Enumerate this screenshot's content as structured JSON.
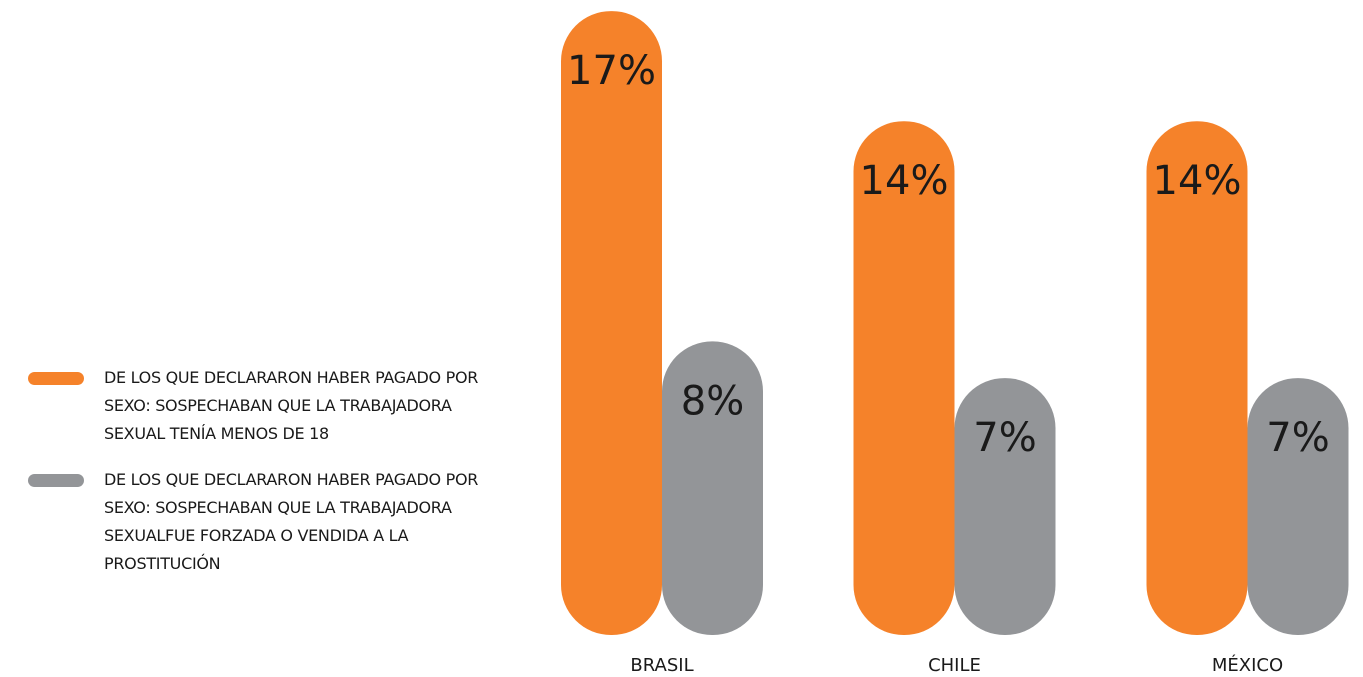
{
  "chart_data": {
    "type": "bar",
    "categories": [
      "BRASIL",
      "CHILE",
      "MÉXICO"
    ],
    "series": [
      {
        "name": "DE LOS QUE DECLARARON HABER PAGADO POR SEXO: SOSPECHABAN QUE LA TRABAJADORA SEXUAL TENÍA MENOS DE 18",
        "color": "#f5822a",
        "values": [
          17,
          14,
          14
        ],
        "value_labels": [
          "17%",
          "14%",
          "14%"
        ]
      },
      {
        "name": "DE LOS QUE DECLARARON HABER PAGADO POR SEXO: SOSPECHABAN QUE LA TRABAJADORA SEXUALFUE FORZADA O VENDIDA A LA PROSTITUCIÓN",
        "color": "#939598",
        "values": [
          8,
          7,
          7
        ],
        "value_labels": [
          "8%",
          "7%",
          "7%"
        ]
      }
    ],
    "legend": "left"
  }
}
